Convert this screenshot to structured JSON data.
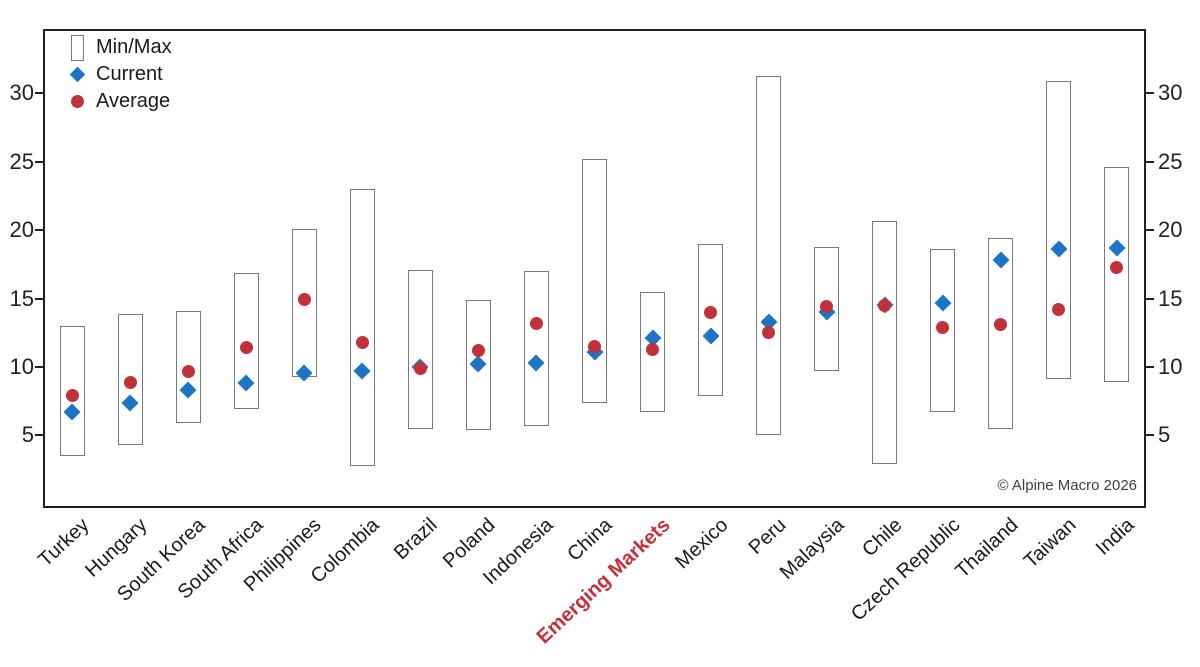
{
  "page": {
    "background": "#ffffff"
  },
  "annotation": {
    "copyright": "© Alpine Macro 2026"
  },
  "chart_data": {
    "type": "bar",
    "subtype": "min-max-range-with-markers",
    "title": "",
    "xlabel": "",
    "ylabel": "",
    "grid": false,
    "legend_position": "top-left-inside",
    "y_axis_sides": [
      "left",
      "right"
    ],
    "yticks": [
      5,
      10,
      15,
      20,
      25,
      30
    ],
    "ylim": [
      -0.3,
      34.7
    ],
    "categories": [
      "Turkey",
      "Hungary",
      "South Korea",
      "South Africa",
      "Philippines",
      "Colombia",
      "Brazil",
      "Poland",
      "Indonesia",
      "China",
      "Emerging Markets",
      "Mexico",
      "Peru",
      "Malaysia",
      "Chile",
      "Czech Republic",
      "Thailand",
      "Taiwan",
      "India"
    ],
    "highlight_category": "Emerging Markets",
    "series": [
      {
        "name": "Min/Max",
        "kind": "range",
        "min": [
          3.5,
          4.3,
          5.9,
          6.9,
          9.3,
          2.8,
          5.5,
          5.4,
          5.7,
          7.4,
          6.7,
          7.9,
          5.0,
          9.7,
          2.9,
          6.7,
          5.5,
          9.1,
          8.9
        ],
        "max": [
          13.0,
          13.9,
          14.1,
          16.9,
          20.1,
          23.0,
          17.1,
          14.9,
          17.0,
          25.2,
          15.5,
          19.0,
          31.3,
          18.8,
          20.7,
          18.6,
          19.4,
          30.9,
          24.6
        ]
      },
      {
        "name": "Current",
        "kind": "scatter",
        "marker": "diamond",
        "color": "#1b74c4",
        "values": [
          6.7,
          7.4,
          8.3,
          8.8,
          9.6,
          9.7,
          10.0,
          10.2,
          10.3,
          11.1,
          12.1,
          12.3,
          13.3,
          14.0,
          14.5,
          14.7,
          17.8,
          18.6,
          18.7
        ]
      },
      {
        "name": "Average",
        "kind": "scatter",
        "marker": "circle",
        "color": "#c2303a",
        "values": [
          7.9,
          8.9,
          9.7,
          11.4,
          14.9,
          11.8,
          9.9,
          11.2,
          13.2,
          11.5,
          11.3,
          14.0,
          12.5,
          14.4,
          14.5,
          12.9,
          13.1,
          14.2,
          17.3
        ]
      }
    ],
    "colors": {
      "current_blue": "#1b74c4",
      "average_red": "#c2303a",
      "bar_border": "#77787b",
      "axis": "#231f20",
      "highlight_label": "#c2303a"
    }
  }
}
